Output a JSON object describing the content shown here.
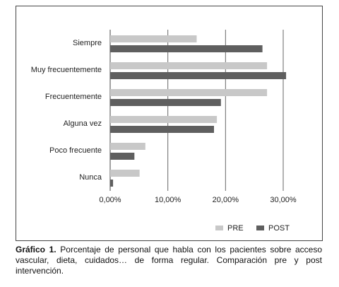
{
  "chart_data": {
    "type": "hbar",
    "categories": [
      "Siempre",
      "Muy frecuentemente",
      "Frecuentemente",
      "Alguna vez",
      "Poco frecuente",
      "Nunca"
    ],
    "series": [
      {
        "name": "PRE",
        "color": "#c8c8c8",
        "values": [
          15.0,
          27.2,
          27.2,
          18.5,
          6.1,
          5.1
        ]
      },
      {
        "name": "POST",
        "color": "#5f5f5f",
        "values": [
          26.4,
          30.5,
          19.2,
          18.0,
          4.2,
          0.5
        ]
      }
    ],
    "xlim": [
      0,
      30
    ],
    "xticks": [
      {
        "value": 0,
        "label": "0,00%"
      },
      {
        "value": 10,
        "label": "10,00%"
      },
      {
        "value": 20,
        "label": "20,00%"
      },
      {
        "value": 30,
        "label": "30,00%"
      }
    ],
    "grid": true,
    "legend": "bottom-right"
  },
  "caption": {
    "label": "Gráfico 1.",
    "text": "Porcentaje de personal que habla con los pacientes sobre acceso vascular, dieta, cuidados… de forma regular. Comparación pre y post intervención."
  }
}
